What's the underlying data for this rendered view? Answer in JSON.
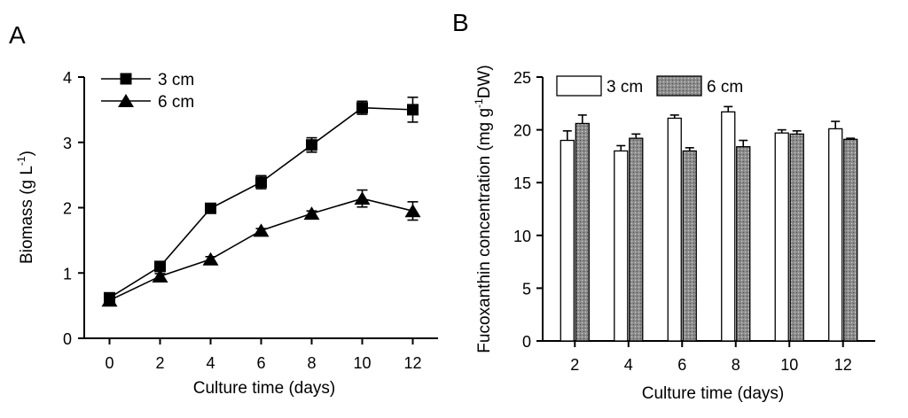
{
  "chart_data": [
    {
      "panel": "A",
      "type": "line",
      "xlabel": "Culture time (days)",
      "ylabel": "Biomass (g L",
      "ylabel_sup": "-1",
      "ylabel_end": ")",
      "xlim": [
        -1,
        13
      ],
      "ylim": [
        0,
        4
      ],
      "xticks": [
        0,
        2,
        4,
        6,
        8,
        10,
        12
      ],
      "yticks": [
        0,
        1,
        2,
        3,
        4
      ],
      "legend_position": "top-left",
      "series": [
        {
          "name": "3 cm",
          "marker": "square",
          "x": [
            0,
            2,
            4,
            6,
            8,
            10,
            12
          ],
          "y": [
            0.62,
            1.1,
            1.99,
            2.39,
            2.96,
            3.53,
            3.5
          ],
          "err": [
            0.05,
            0.05,
            0.04,
            0.1,
            0.11,
            0.1,
            0.19
          ]
        },
        {
          "name": "6 cm",
          "marker": "triangle",
          "x": [
            0,
            2,
            4,
            6,
            8,
            10,
            12
          ],
          "y": [
            0.58,
            0.95,
            1.21,
            1.65,
            1.91,
            2.14,
            1.95
          ],
          "err": [
            0.03,
            0.04,
            0.04,
            0.03,
            0.04,
            0.13,
            0.14
          ]
        }
      ]
    },
    {
      "panel": "B",
      "type": "bar",
      "xlabel": "Culture time (days)",
      "ylabel": "Fucoxanthin concentration (mg g",
      "ylabel_sup": "-1",
      "ylabel_end": "DW)",
      "ylim": [
        0,
        25
      ],
      "yticks": [
        0,
        5,
        10,
        15,
        20,
        25
      ],
      "categories": [
        "2",
        "4",
        "6",
        "8",
        "10",
        "12"
      ],
      "legend_position": "top",
      "series": [
        {
          "name": "3 cm",
          "fill": "#ffffff",
          "values": [
            19.0,
            18.0,
            21.1,
            21.7,
            19.7,
            20.1
          ],
          "err": [
            0.9,
            0.5,
            0.3,
            0.5,
            0.3,
            0.7
          ]
        },
        {
          "name": "6 cm",
          "fill": "#8a8a8a",
          "values": [
            20.6,
            19.2,
            18.0,
            18.4,
            19.6,
            19.1
          ],
          "err": [
            0.8,
            0.4,
            0.3,
            0.6,
            0.3,
            0.1
          ]
        }
      ]
    }
  ]
}
